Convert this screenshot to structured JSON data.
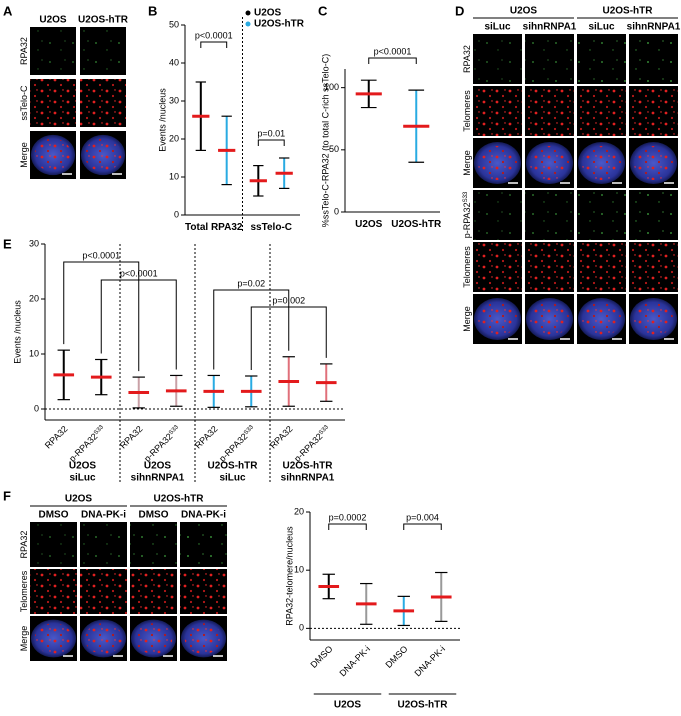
{
  "panel_labels": [
    "A",
    "B",
    "C",
    "D",
    "E",
    "F"
  ],
  "panel_a": {
    "columns": [
      "U2OS",
      "U2OS-hTR"
    ],
    "rows": [
      "RPA32",
      "ssTelo-C",
      "Merge"
    ]
  },
  "panel_d": {
    "groups": [
      "U2OS",
      "U2OS-hTR"
    ],
    "columns": [
      "siLuc",
      "sihnRNPA1",
      "siLuc",
      "sihnRNPA1"
    ],
    "rows": [
      "RPA32",
      "Telomeres",
      "Merge",
      "p-RPA32",
      "Telomeres",
      "Merge"
    ],
    "superscript": "S33"
  },
  "panel_f": {
    "groups": [
      "U2OS",
      "U2OS-hTR"
    ],
    "columns": [
      "DMSO",
      "DNA-PK-i",
      "DMSO",
      "DNA-PK-i"
    ],
    "rows": [
      "RPA32",
      "Telomeres",
      "Merge"
    ]
  },
  "chart_data": [
    {
      "type": "strip",
      "y_label": "Events /nucleus",
      "categories": [
        "Total RPA32",
        "ssTelo-C"
      ],
      "series": [
        {
          "name": "U2OS",
          "color": "#000000",
          "values": [
            26,
            9
          ],
          "errors": [
            9,
            4
          ]
        },
        {
          "name": "U2OS-hTR",
          "color": "#29abe2",
          "values": [
            17,
            11
          ],
          "errors": [
            9,
            4
          ]
        }
      ],
      "p_values": [
        "p<0.0001",
        "p=0.01"
      ],
      "ylim": [
        0,
        50
      ],
      "yticks": [
        0,
        10,
        20,
        30,
        40,
        50
      ],
      "mean_color": "#e31a1c",
      "legend": "top-right"
    },
    {
      "type": "strip",
      "y_label": "%ssTelo-C-RPA32 (to total C-rich ssTelo-C)",
      "categories": [
        "U2OS",
        "U2OS-hTR"
      ],
      "colors": [
        "#000000",
        "#29abe2"
      ],
      "values": [
        95,
        69
      ],
      "errors": [
        11,
        29
      ],
      "p_values": [
        "p<0.0001"
      ],
      "ylim": [
        0,
        115
      ],
      "yticks": [
        0,
        50,
        100
      ],
      "mean_color": "#e31a1c"
    },
    {
      "type": "strip",
      "y_label": "Events /nucleus",
      "categories": [
        "RPA32",
        "p-RPA32",
        "RPA32",
        "p-RPA32",
        "RPA32",
        "p-RPA32",
        "RPA32",
        "p-RPA32"
      ],
      "superscript": "S33",
      "groups": [
        [
          "U2OS",
          "siLuc"
        ],
        [
          "U2OS",
          "sihnRNPA1"
        ],
        [
          "U2OS-hTR",
          "siLuc"
        ],
        [
          "U2OS-hTR",
          "sihnRNPA1"
        ]
      ],
      "colors": [
        "#000000",
        "#000000",
        "#c9a0a6",
        "#c9a0a6",
        "#29abe2",
        "#29abe2",
        "#e0707a",
        "#e0707a"
      ],
      "values": [
        6.2,
        5.8,
        3.0,
        3.3,
        3.2,
        3.2,
        5.0,
        4.8
      ],
      "errors": [
        4.5,
        3.2,
        2.8,
        2.8,
        2.9,
        2.8,
        4.5,
        3.4
      ],
      "p_values": [
        "p<0.0001",
        "p<0.0001",
        "p=0.02",
        "p=0.002"
      ],
      "ylim": [
        -2,
        30
      ],
      "yticks": [
        0,
        10,
        20,
        30
      ],
      "mean_color": "#e31a1c"
    },
    {
      "type": "strip",
      "y_label": "RPA32-telomere/nucleus",
      "categories": [
        "DMSO",
        "DNA-PK-i",
        "DMSO",
        "DNA-PK-i"
      ],
      "groups": [
        "U2OS",
        "U2OS-hTR"
      ],
      "colors": [
        "#000000",
        "#999999",
        "#29abe2",
        "#999999"
      ],
      "values": [
        7.2,
        4.2,
        3.0,
        5.4
      ],
      "errors": [
        2.1,
        3.5,
        2.5,
        4.2
      ],
      "p_values": [
        "p=0.0002",
        "p=0.004"
      ],
      "ylim": [
        -2,
        20
      ],
      "yticks": [
        0,
        10,
        20
      ],
      "mean_color": "#e31a1c"
    }
  ]
}
